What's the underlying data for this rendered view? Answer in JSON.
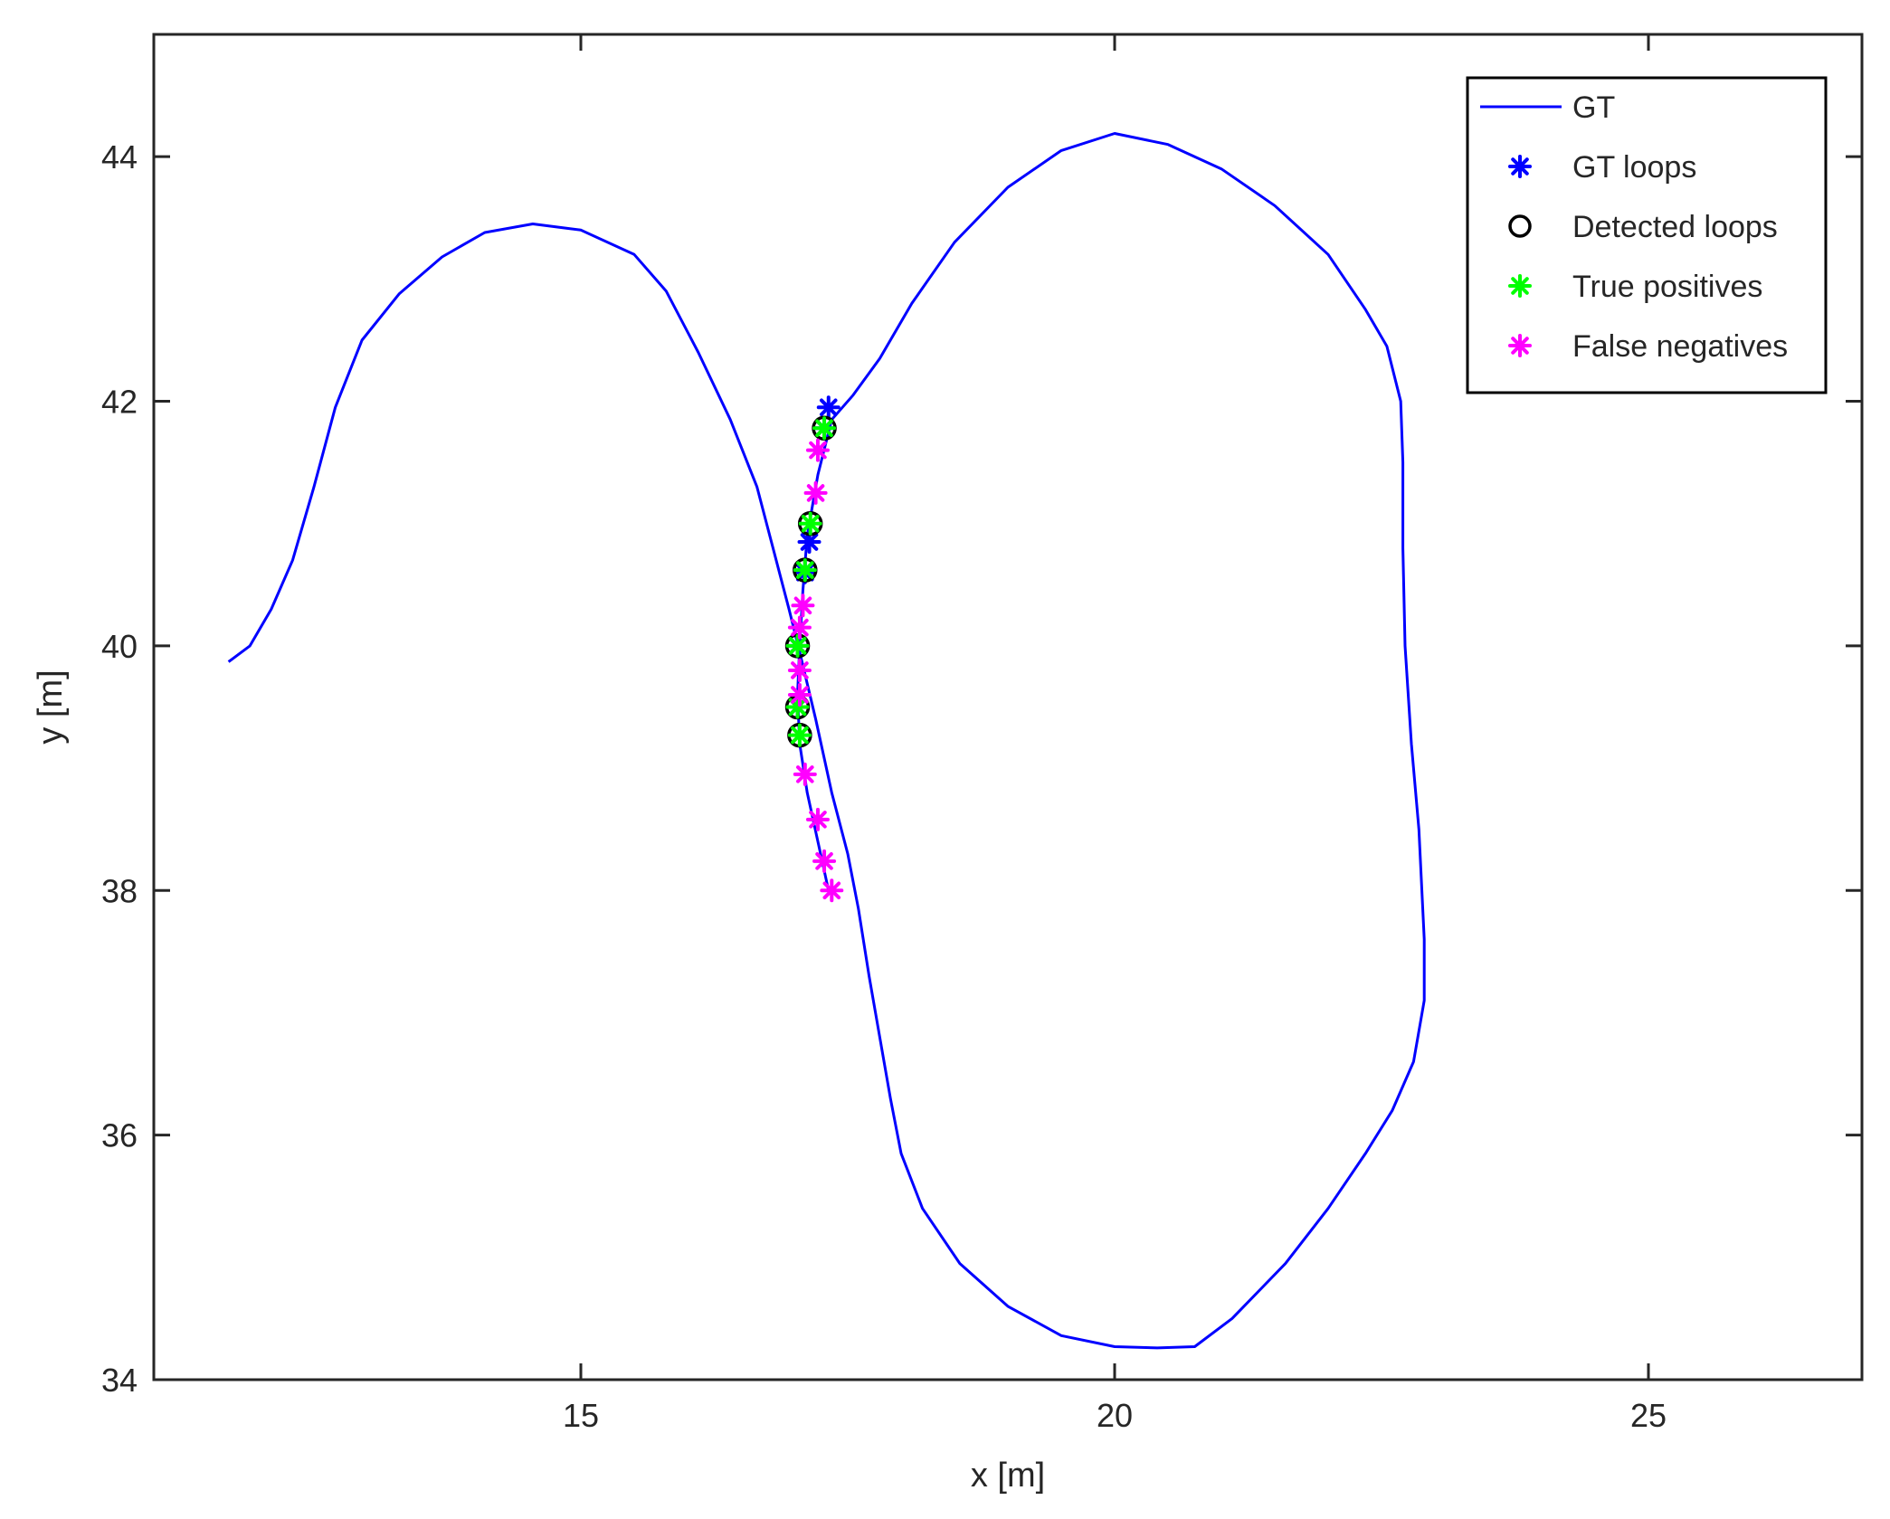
{
  "chart_data": {
    "type": "line",
    "title": "",
    "xlabel": "x [m]",
    "ylabel": "y [m]",
    "xlim": [
      11,
      27
    ],
    "ylim": [
      34,
      45
    ],
    "xticks": [
      15,
      20,
      25
    ],
    "yticks": [
      34,
      36,
      38,
      40,
      42,
      44
    ],
    "xtick_labels": [
      "15",
      "20",
      "25"
    ],
    "ytick_labels": [
      "34",
      "36",
      "38",
      "40",
      "42",
      "44"
    ],
    "grid": false,
    "legend_position": "top-right",
    "series": [
      {
        "name": "GT",
        "style": "line",
        "color": "#0000ff",
        "points": [
          [
            11.7,
            39.87
          ],
          [
            11.9,
            40.0
          ],
          [
            12.1,
            40.3
          ],
          [
            12.3,
            40.7
          ],
          [
            12.5,
            41.3
          ],
          [
            12.7,
            41.95
          ],
          [
            12.95,
            42.5
          ],
          [
            13.3,
            42.88
          ],
          [
            13.7,
            43.18
          ],
          [
            14.1,
            43.38
          ],
          [
            14.55,
            43.45
          ],
          [
            15.0,
            43.4
          ],
          [
            15.5,
            43.2
          ],
          [
            15.8,
            42.9
          ],
          [
            16.1,
            42.4
          ],
          [
            16.4,
            41.85
          ],
          [
            16.65,
            41.3
          ],
          [
            16.8,
            40.8
          ],
          [
            16.95,
            40.3
          ],
          [
            17.05,
            39.95
          ],
          [
            17.2,
            39.4
          ],
          [
            17.35,
            38.8
          ],
          [
            17.5,
            38.3
          ],
          [
            17.6,
            37.85
          ],
          [
            17.7,
            37.3
          ],
          [
            17.8,
            36.8
          ],
          [
            17.9,
            36.3
          ],
          [
            18.0,
            35.85
          ],
          [
            18.2,
            35.4
          ],
          [
            18.55,
            34.95
          ],
          [
            19.0,
            34.6
          ],
          [
            19.5,
            34.36
          ],
          [
            20.0,
            34.27
          ],
          [
            20.4,
            34.26
          ],
          [
            20.75,
            34.27
          ],
          [
            21.1,
            34.5
          ],
          [
            21.6,
            34.95
          ],
          [
            22.0,
            35.4
          ],
          [
            22.35,
            35.85
          ],
          [
            22.6,
            36.2
          ],
          [
            22.8,
            36.6
          ],
          [
            22.9,
            37.1
          ],
          [
            22.9,
            37.6
          ],
          [
            22.85,
            38.5
          ],
          [
            22.78,
            39.2
          ],
          [
            22.72,
            40.0
          ],
          [
            22.7,
            40.8
          ],
          [
            22.7,
            41.5
          ],
          [
            22.68,
            42.0
          ],
          [
            22.55,
            42.45
          ],
          [
            22.35,
            42.75
          ],
          [
            22.0,
            43.2
          ],
          [
            21.5,
            43.6
          ],
          [
            21.0,
            43.9
          ],
          [
            20.5,
            44.1
          ],
          [
            20.0,
            44.19
          ],
          [
            19.5,
            44.05
          ],
          [
            19.0,
            43.75
          ],
          [
            18.5,
            43.3
          ],
          [
            18.1,
            42.8
          ],
          [
            17.8,
            42.35
          ],
          [
            17.55,
            42.05
          ],
          [
            17.35,
            41.85
          ],
          [
            17.22,
            41.4
          ],
          [
            17.12,
            40.9
          ],
          [
            17.08,
            40.45
          ],
          [
            17.05,
            40.0
          ],
          [
            17.03,
            39.6
          ],
          [
            17.05,
            39.2
          ],
          [
            17.12,
            38.8
          ],
          [
            17.22,
            38.4
          ],
          [
            17.32,
            38.0
          ]
        ]
      },
      {
        "name": "GT loops",
        "style": "marker-star",
        "color": "#0000ff",
        "points": [
          [
            17.32,
            41.95
          ],
          [
            17.28,
            41.78
          ],
          [
            17.14,
            40.85
          ],
          [
            17.1,
            40.6
          ],
          [
            17.03,
            40.0
          ],
          [
            17.03,
            39.5
          ]
        ]
      },
      {
        "name": "Detected loops",
        "style": "marker-circle",
        "color": "#000000",
        "points": [
          [
            17.28,
            41.78
          ],
          [
            17.15,
            41.0
          ],
          [
            17.1,
            40.62
          ],
          [
            17.03,
            40.0
          ],
          [
            17.03,
            39.5
          ],
          [
            17.05,
            39.27
          ]
        ]
      },
      {
        "name": "True positives",
        "style": "marker-star",
        "color": "#00ff00",
        "points": [
          [
            17.28,
            41.78
          ],
          [
            17.15,
            41.0
          ],
          [
            17.1,
            40.62
          ],
          [
            17.03,
            40.0
          ],
          [
            17.03,
            39.5
          ],
          [
            17.05,
            39.27
          ]
        ]
      },
      {
        "name": "False negatives",
        "style": "marker-star",
        "color": "#ff00ff",
        "points": [
          [
            17.22,
            41.6
          ],
          [
            17.2,
            41.25
          ],
          [
            17.08,
            40.33
          ],
          [
            17.05,
            40.15
          ],
          [
            17.05,
            39.8
          ],
          [
            17.05,
            39.6
          ],
          [
            17.1,
            38.95
          ],
          [
            17.22,
            38.58
          ],
          [
            17.28,
            38.24
          ],
          [
            17.35,
            38.0
          ]
        ]
      }
    ]
  }
}
